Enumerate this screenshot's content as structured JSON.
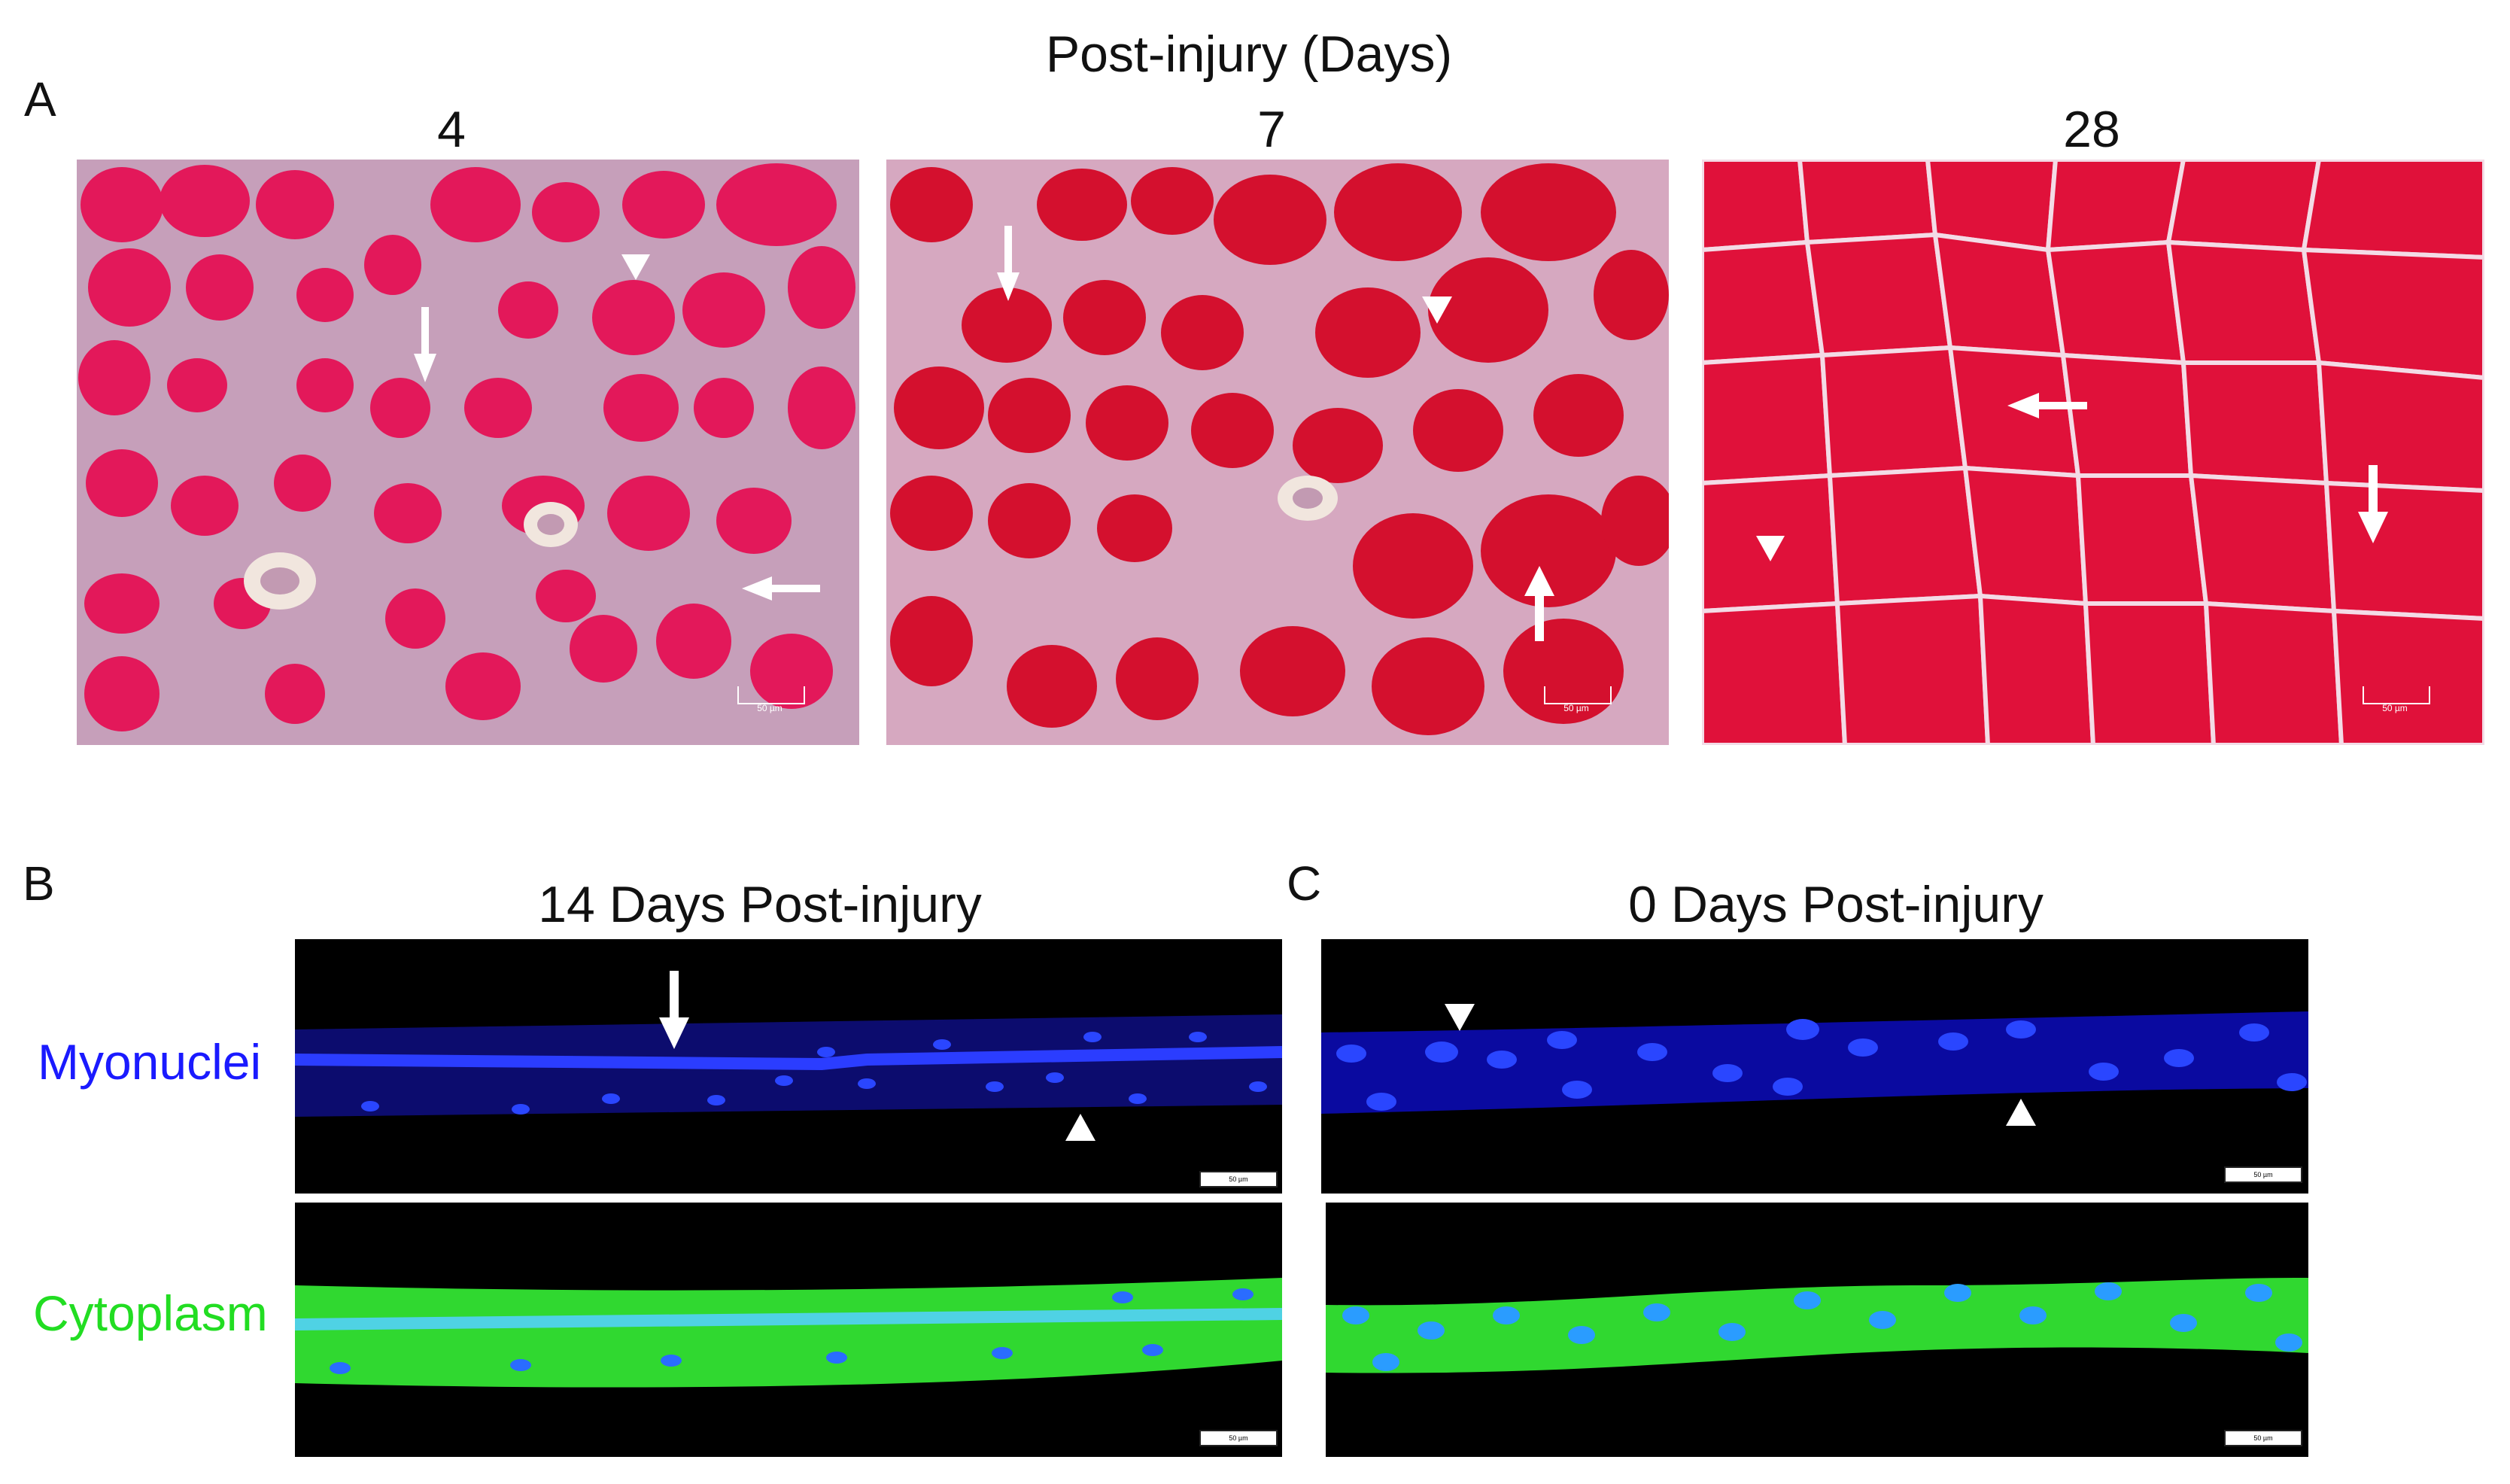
{
  "panelA": {
    "letter": "A",
    "title": "Post-injury (Days)",
    "days": [
      "4",
      "7",
      "28"
    ],
    "scale_label": "50 µm"
  },
  "panelB": {
    "letter": "B",
    "title": "14 Days Post-injury",
    "scale_label": "50 µm"
  },
  "panelC": {
    "letter": "C",
    "title": "0 Days Post-injury",
    "scale_label": "50 µm"
  },
  "rows": {
    "myonuclei": "Myonuclei",
    "cytoplasm": "Cytoplasm"
  },
  "colors": {
    "myonuclei_label": "#1a1aff",
    "cytoplasm_label": "#22dd22",
    "he_pink": "#e0114a",
    "he_red": "#d0102a",
    "nucleus_blue": "#1f3dff",
    "fiber_green": "#33dd33"
  },
  "icons": [
    "arrow-icon",
    "arrowhead-icon"
  ]
}
